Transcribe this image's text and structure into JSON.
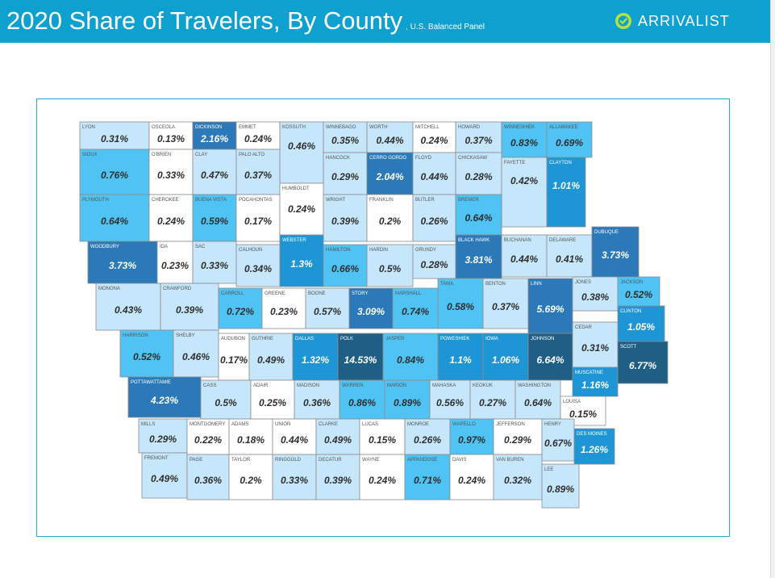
{
  "header": {
    "title": "2020 Share of Travelers, By County",
    "subtitle": ", U.S. Balanced Panel",
    "brand_icon": "checkmark-pin-icon",
    "brand_name": "ARRIVALIST"
  },
  "colors": {
    "header_bg": "#0ea1cf",
    "brand_icon": "#b6e33a",
    "frame_border": "#2aa9cf",
    "county_border": "#8c8c8c",
    "tier_0": "#ffffff",
    "tier_1": "#c6e6fb",
    "tier_2": "#4fc3f3",
    "tier_3": "#1e96d5",
    "tier_4": "#2b79b9",
    "tier_5": "#1f5f86"
  },
  "map": {
    "title": "2020 Share of Travelers, By County",
    "counties": [
      {
        "name": "LYON",
        "value": "0.31%"
      },
      {
        "name": "OSCEOLA",
        "value": "0.13%"
      },
      {
        "name": "DICKINSON",
        "value": "2.16%"
      },
      {
        "name": "EMMET",
        "value": "0.24%"
      },
      {
        "name": "KOSSUTH",
        "value": "0.46%"
      },
      {
        "name": "WINNEBAGO",
        "value": "0.35%"
      },
      {
        "name": "WORTH",
        "value": "0.44%"
      },
      {
        "name": "MITCHELL",
        "value": "0.24%"
      },
      {
        "name": "HOWARD",
        "value": "0.37%"
      },
      {
        "name": "WINNESHIEK",
        "value": "0.83%"
      },
      {
        "name": "ALLAMAKEE",
        "value": "0.69%"
      },
      {
        "name": "SIOUX",
        "value": "0.76%"
      },
      {
        "name": "O'BRIEN",
        "value": "0.33%"
      },
      {
        "name": "CLAY",
        "value": "0.47%"
      },
      {
        "name": "PALO ALTO",
        "value": "0.37%"
      },
      {
        "name": "HANCOCK",
        "value": "0.29%"
      },
      {
        "name": "CERRO GORDO",
        "value": "2.04%"
      },
      {
        "name": "FLOYD",
        "value": "0.44%"
      },
      {
        "name": "CHICKASAW",
        "value": "0.28%"
      },
      {
        "name": "FAYETTE",
        "value": "0.42%"
      },
      {
        "name": "CLAYTON",
        "value": "1.01%"
      },
      {
        "name": "PLYMOUTH",
        "value": "0.64%"
      },
      {
        "name": "CHEROKEE",
        "value": "0.24%"
      },
      {
        "name": "BUENA VISTA",
        "value": "0.59%"
      },
      {
        "name": "POCAHONTAS",
        "value": "0.17%"
      },
      {
        "name": "HUMBOLDT",
        "value": "0.24%"
      },
      {
        "name": "WRIGHT",
        "value": "0.39%"
      },
      {
        "name": "FRANKLIN",
        "value": "0.2%"
      },
      {
        "name": "BUTLER",
        "value": "0.26%"
      },
      {
        "name": "BREMER",
        "value": "0.64%"
      },
      {
        "name": "WOODBURY",
        "value": "3.73%"
      },
      {
        "name": "IDA",
        "value": "0.23%"
      },
      {
        "name": "SAC",
        "value": "0.33%"
      },
      {
        "name": "CALHOUN",
        "value": "0.34%"
      },
      {
        "name": "WEBSTER",
        "value": "1.3%"
      },
      {
        "name": "HAMILTON",
        "value": "0.66%"
      },
      {
        "name": "HARDIN",
        "value": "0.5%"
      },
      {
        "name": "GRUNDY",
        "value": "0.28%"
      },
      {
        "name": "BLACK HAWK",
        "value": "3.81%"
      },
      {
        "name": "BUCHANAN",
        "value": "0.44%"
      },
      {
        "name": "DELAWARE",
        "value": "0.41%"
      },
      {
        "name": "DUBUQUE",
        "value": "3.73%"
      },
      {
        "name": "MONONA",
        "value": "0.43%"
      },
      {
        "name": "CRAWFORD",
        "value": "0.39%"
      },
      {
        "name": "CARROLL",
        "value": "0.72%"
      },
      {
        "name": "GREENE",
        "value": "0.23%"
      },
      {
        "name": "BOONE",
        "value": "0.57%"
      },
      {
        "name": "STORY",
        "value": "3.09%"
      },
      {
        "name": "MARSHALL",
        "value": "0.74%"
      },
      {
        "name": "TAMA",
        "value": "0.58%"
      },
      {
        "name": "BENTON",
        "value": "0.37%"
      },
      {
        "name": "LINN",
        "value": "5.69%"
      },
      {
        "name": "JONES",
        "value": "0.38%"
      },
      {
        "name": "JACKSON",
        "value": "0.52%"
      },
      {
        "name": "CLINTON",
        "value": "1.05%"
      },
      {
        "name": "HARRISON",
        "value": "0.52%"
      },
      {
        "name": "SHELBY",
        "value": "0.46%"
      },
      {
        "name": "AUDUBON",
        "value": "0.17%"
      },
      {
        "name": "GUTHRIE",
        "value": "0.49%"
      },
      {
        "name": "DALLAS",
        "value": "1.32%"
      },
      {
        "name": "POLK",
        "value": "14.53%"
      },
      {
        "name": "JASPER",
        "value": "0.84%"
      },
      {
        "name": "POWESHIEK",
        "value": "1.1%"
      },
      {
        "name": "IOWA",
        "value": "1.06%"
      },
      {
        "name": "JOHNSON",
        "value": "6.64%"
      },
      {
        "name": "CEDAR",
        "value": "0.31%"
      },
      {
        "name": "SCOTT",
        "value": "6.77%"
      },
      {
        "name": "MUSCATINE",
        "value": "1.16%"
      },
      {
        "name": "POTTAWATTAMIE",
        "value": "4.23%"
      },
      {
        "name": "CASS",
        "value": "0.5%"
      },
      {
        "name": "ADAIR",
        "value": "0.25%"
      },
      {
        "name": "MADISON",
        "value": "0.36%"
      },
      {
        "name": "WARREN",
        "value": "0.86%"
      },
      {
        "name": "MARION",
        "value": "0.89%"
      },
      {
        "name": "MAHASKA",
        "value": "0.56%"
      },
      {
        "name": "KEOKUK",
        "value": "0.27%"
      },
      {
        "name": "WASHINGTON",
        "value": "0.64%"
      },
      {
        "name": "LOUISA",
        "value": "0.15%"
      },
      {
        "name": "MILLS",
        "value": "0.29%"
      },
      {
        "name": "MONTGOMERY",
        "value": "0.22%"
      },
      {
        "name": "ADAMS",
        "value": "0.18%"
      },
      {
        "name": "UNION",
        "value": "0.44%"
      },
      {
        "name": "CLARKE",
        "value": "0.49%"
      },
      {
        "name": "LUCAS",
        "value": "0.15%"
      },
      {
        "name": "MONROE",
        "value": "0.26%"
      },
      {
        "name": "WAPELLO",
        "value": "0.97%"
      },
      {
        "name": "JEFFERSON",
        "value": "0.29%"
      },
      {
        "name": "HENRY",
        "value": "0.67%"
      },
      {
        "name": "DES MOINES",
        "value": "1.26%"
      },
      {
        "name": "FREMONT",
        "value": "0.49%"
      },
      {
        "name": "PAGE",
        "value": "0.36%"
      },
      {
        "name": "TAYLOR",
        "value": "0.2%"
      },
      {
        "name": "RINGGOLD",
        "value": "0.33%"
      },
      {
        "name": "DECATUR",
        "value": "0.39%"
      },
      {
        "name": "WAYNE",
        "value": "0.24%"
      },
      {
        "name": "APPANOOSE",
        "value": "0.71%"
      },
      {
        "name": "DAVIS",
        "value": "0.24%"
      },
      {
        "name": "VAN BUREN",
        "value": "0.32%"
      },
      {
        "name": "LEE",
        "value": "0.89%"
      }
    ]
  }
}
